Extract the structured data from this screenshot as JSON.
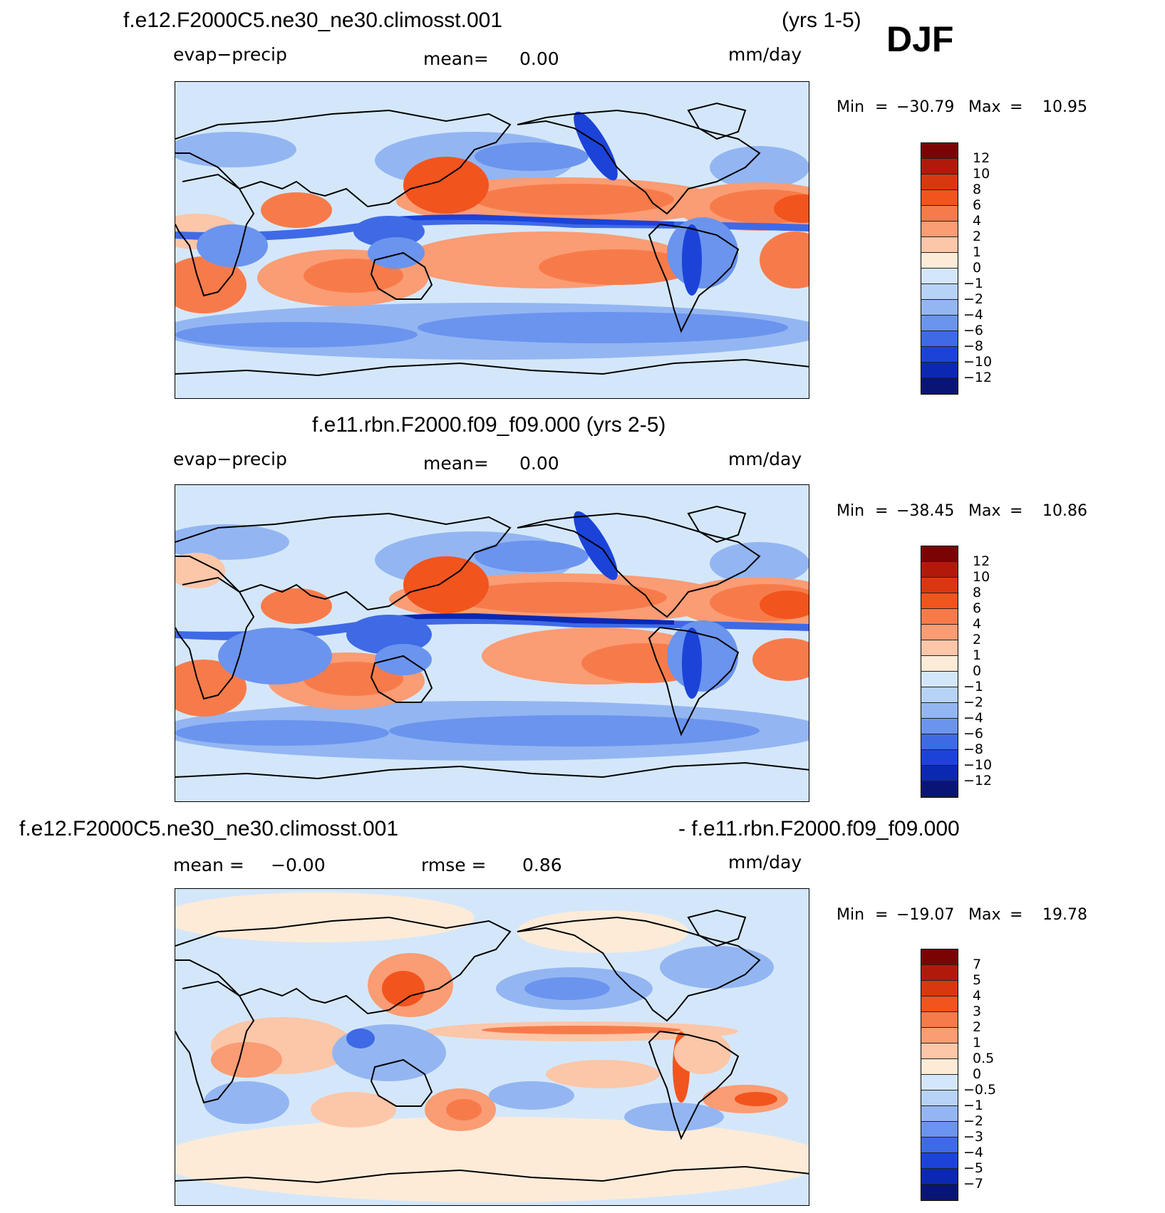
{
  "figure": {
    "season": "DJF",
    "panels": [
      {
        "id": "p1",
        "title_left": "f.e12.F2000C5.ne30_ne30.climosst.001",
        "title_right": "(yrs 1-5)",
        "variable": "evap−precip",
        "stat1_label": "mean=",
        "stat1_value": "0.00",
        "units": "mm/day",
        "min_label": "Min",
        "min_value": "−30.79",
        "max_label": "Max",
        "max_value": "10.95",
        "colorbar": {
          "labels": [
            "12",
            "10",
            "8",
            "6",
            "4",
            "2",
            "1",
            "0",
            "−1",
            "−2",
            "−4",
            "−6",
            "−8",
            "−10",
            "−12"
          ],
          "colors": [
            "#7a0403",
            "#b11a0b",
            "#d9370f",
            "#f2541e",
            "#f77b4a",
            "#fa9c74",
            "#fcc6a8",
            "#fdebd8",
            "#d4e7fa",
            "#b6d3f7",
            "#93b6f2",
            "#6b94ee",
            "#3f6ae5",
            "#1c43d8",
            "#0b28b2",
            "#081575"
          ]
        }
      },
      {
        "id": "p2",
        "title_center": "f.e11.rbn.F2000.f09_f09.000 (yrs 2-5)",
        "variable": "evap−precip",
        "stat1_label": "mean=",
        "stat1_value": "0.00",
        "units": "mm/day",
        "min_label": "Min",
        "min_value": "−38.45",
        "max_label": "Max",
        "max_value": "10.86",
        "colorbar": {
          "labels": [
            "12",
            "10",
            "8",
            "6",
            "4",
            "2",
            "1",
            "0",
            "−1",
            "−2",
            "−4",
            "−6",
            "−8",
            "−10",
            "−12"
          ],
          "colors": [
            "#7a0403",
            "#b11a0b",
            "#d9370f",
            "#f2541e",
            "#f77b4a",
            "#fa9c74",
            "#fcc6a8",
            "#fdebd8",
            "#d4e7fa",
            "#b6d3f7",
            "#93b6f2",
            "#6b94ee",
            "#3f6ae5",
            "#1c43d8",
            "#0b28b2",
            "#081575"
          ]
        }
      },
      {
        "id": "p3",
        "title_left": "f.e12.F2000C5.ne30_ne30.climosst.001",
        "title_right": "- f.e11.rbn.F2000.f09_f09.000",
        "stat1_label": "mean =",
        "stat1_value": "−0.00",
        "stat2_label": "rmse =",
        "stat2_value": "0.86",
        "units": "mm/day",
        "min_label": "Min",
        "min_value": "−19.07",
        "max_label": "Max",
        "max_value": "19.78",
        "colorbar": {
          "labels": [
            "7",
            "5",
            "4",
            "3",
            "2",
            "1",
            "0.5",
            "0",
            "−0.5",
            "−1",
            "−2",
            "−3",
            "−4",
            "−5",
            "−7"
          ],
          "colors": [
            "#7a0403",
            "#b11a0b",
            "#d9370f",
            "#f2541e",
            "#f77b4a",
            "#fa9c74",
            "#fcc6a8",
            "#fdebd8",
            "#d4e7fa",
            "#b6d3f7",
            "#93b6f2",
            "#6b94ee",
            "#3f6ae5",
            "#1c43d8",
            "#0b28b2",
            "#081575"
          ]
        }
      }
    ]
  }
}
